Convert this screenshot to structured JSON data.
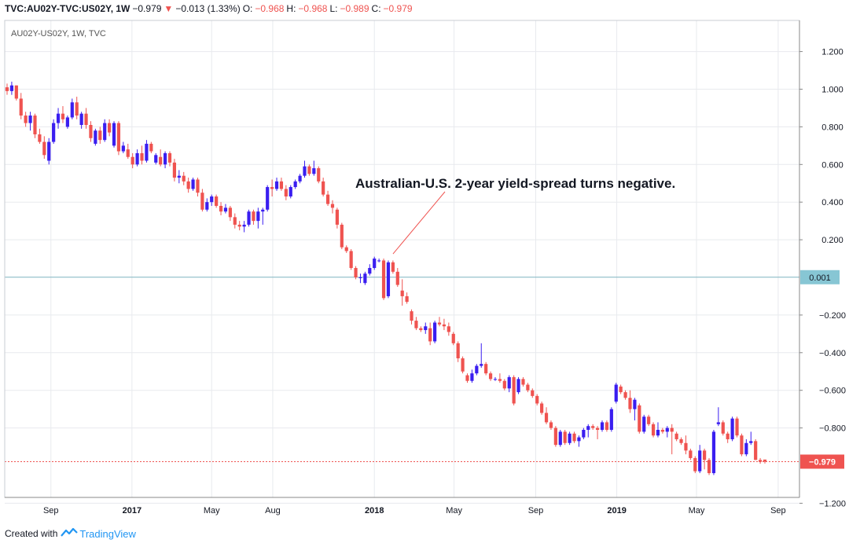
{
  "header": {
    "symbol": "TVC:AU02Y-TVC:US02Y, 1W",
    "last": "−0.979",
    "change_icon": "triangle-down-icon",
    "change": "−0.013 (1.33%)",
    "o_label": "O:",
    "o_value": "−0.968",
    "h_label": "H:",
    "h_value": "−0.968",
    "l_label": "L:",
    "l_value": "−0.989",
    "c_label": "C:",
    "c_value": "−0.979"
  },
  "footer": {
    "created_with": "Created with",
    "brand": "TradingView",
    "brand_icon": "tradingview-logo-icon"
  },
  "colors": {
    "up": "#3a1ef0",
    "down": "#ef5350",
    "zero_line": "#7fb4c0",
    "zero_badge": "#87c6d4",
    "last_badge": "#ef5350",
    "grid": "#e8eaee"
  },
  "chart_data": {
    "type": "candlestick",
    "title": "AU02Y-US02Y, 1W, TVC",
    "y_ticks": [
      "1.200",
      "1.000",
      "0.800",
      "0.600",
      "0.400",
      "0.200",
      "−0.200",
      "−0.400",
      "−0.600",
      "−0.800",
      "−1.200"
    ],
    "x_ticks": [
      {
        "label": "Sep",
        "date": "2016-09-01",
        "bold": false
      },
      {
        "label": "2017",
        "date": "2017-01-01",
        "bold": true
      },
      {
        "label": "May",
        "date": "2017-05-01",
        "bold": false
      },
      {
        "label": "Aug",
        "date": "2017-08-01",
        "bold": false
      },
      {
        "label": "2018",
        "date": "2018-01-01",
        "bold": true
      },
      {
        "label": "May",
        "date": "2018-05-01",
        "bold": false
      },
      {
        "label": "Sep",
        "date": "2018-09-01",
        "bold": false
      },
      {
        "label": "2019",
        "date": "2019-01-01",
        "bold": true
      },
      {
        "label": "May",
        "date": "2019-05-01",
        "bold": false
      },
      {
        "label": "Sep",
        "date": "2019-09-01",
        "bold": false
      }
    ],
    "ylim": [
      -1.2,
      1.2
    ],
    "grid": true,
    "zero_line": {
      "value": 0.001,
      "label": "0.001"
    },
    "last_price": {
      "value": -0.979,
      "label": "−0.979"
    },
    "annotation": {
      "text": "Australian-U.S. 2-year yield-spread turns negative.",
      "target_date": "2018-01-22",
      "target_value": 0.1
    },
    "candles": [
      [
        "2016-06-27",
        1.01,
        1.03,
        0.97,
        0.99
      ],
      [
        "2016-07-04",
        0.99,
        1.04,
        0.97,
        1.02
      ],
      [
        "2016-07-11",
        1.02,
        1.02,
        0.94,
        0.95
      ],
      [
        "2016-07-18",
        0.95,
        0.98,
        0.84,
        0.86
      ],
      [
        "2016-07-25",
        0.86,
        0.88,
        0.8,
        0.82
      ],
      [
        "2016-08-01",
        0.82,
        0.88,
        0.78,
        0.86
      ],
      [
        "2016-08-08",
        0.86,
        0.87,
        0.74,
        0.76
      ],
      [
        "2016-08-15",
        0.76,
        0.79,
        0.71,
        0.72
      ],
      [
        "2016-08-22",
        0.72,
        0.75,
        0.63,
        0.65
      ],
      [
        "2016-08-29",
        0.62,
        0.74,
        0.6,
        0.72
      ],
      [
        "2016-09-05",
        0.72,
        0.84,
        0.71,
        0.82
      ],
      [
        "2016-09-12",
        0.82,
        0.9,
        0.79,
        0.87
      ],
      [
        "2016-09-19",
        0.87,
        0.91,
        0.82,
        0.84
      ],
      [
        "2016-09-26",
        0.8,
        0.86,
        0.79,
        0.85
      ],
      [
        "2016-10-03",
        0.85,
        0.95,
        0.84,
        0.93
      ],
      [
        "2016-10-10",
        0.93,
        0.96,
        0.84,
        0.86
      ],
      [
        "2016-10-17",
        0.81,
        0.88,
        0.79,
        0.87
      ],
      [
        "2016-10-24",
        0.87,
        0.9,
        0.79,
        0.81
      ],
      [
        "2016-10-31",
        0.81,
        0.83,
        0.72,
        0.74
      ],
      [
        "2016-11-07",
        0.71,
        0.79,
        0.7,
        0.78
      ],
      [
        "2016-11-14",
        0.78,
        0.8,
        0.71,
        0.73
      ],
      [
        "2016-11-21",
        0.73,
        0.84,
        0.72,
        0.82
      ],
      [
        "2016-11-28",
        0.82,
        0.84,
        0.75,
        0.77
      ],
      [
        "2016-12-05",
        0.7,
        0.83,
        0.69,
        0.82
      ],
      [
        "2016-12-12",
        0.82,
        0.83,
        0.65,
        0.67
      ],
      [
        "2016-12-19",
        0.67,
        0.72,
        0.66,
        0.7
      ],
      [
        "2016-12-26",
        0.68,
        0.71,
        0.63,
        0.64
      ],
      [
        "2017-01-02",
        0.64,
        0.66,
        0.58,
        0.6
      ],
      [
        "2017-01-09",
        0.6,
        0.68,
        0.59,
        0.66
      ],
      [
        "2017-01-16",
        0.66,
        0.7,
        0.6,
        0.62
      ],
      [
        "2017-01-23",
        0.62,
        0.73,
        0.61,
        0.71
      ],
      [
        "2017-01-30",
        0.71,
        0.72,
        0.66,
        0.67
      ],
      [
        "2017-02-06",
        0.61,
        0.66,
        0.6,
        0.65
      ],
      [
        "2017-02-13",
        0.64,
        0.68,
        0.59,
        0.6
      ],
      [
        "2017-02-20",
        0.6,
        0.67,
        0.58,
        0.66
      ],
      [
        "2017-02-27",
        0.66,
        0.67,
        0.59,
        0.61
      ],
      [
        "2017-03-06",
        0.61,
        0.63,
        0.51,
        0.53
      ],
      [
        "2017-03-13",
        0.53,
        0.57,
        0.5,
        0.54
      ],
      [
        "2017-03-20",
        0.54,
        0.56,
        0.49,
        0.51
      ],
      [
        "2017-03-27",
        0.51,
        0.53,
        0.45,
        0.47
      ],
      [
        "2017-04-03",
        0.47,
        0.53,
        0.46,
        0.52
      ],
      [
        "2017-04-10",
        0.52,
        0.53,
        0.43,
        0.45
      ],
      [
        "2017-04-17",
        0.45,
        0.47,
        0.35,
        0.36
      ],
      [
        "2017-04-24",
        0.36,
        0.42,
        0.35,
        0.4
      ],
      [
        "2017-05-01",
        0.4,
        0.44,
        0.38,
        0.43
      ],
      [
        "2017-05-08",
        0.43,
        0.44,
        0.37,
        0.38
      ],
      [
        "2017-05-15",
        0.38,
        0.4,
        0.33,
        0.35
      ],
      [
        "2017-05-22",
        0.35,
        0.39,
        0.34,
        0.37
      ],
      [
        "2017-05-29",
        0.37,
        0.38,
        0.3,
        0.32
      ],
      [
        "2017-06-05",
        0.32,
        0.34,
        0.26,
        0.28
      ],
      [
        "2017-06-12",
        0.28,
        0.3,
        0.25,
        0.27
      ],
      [
        "2017-06-19",
        0.27,
        0.3,
        0.24,
        0.28
      ],
      [
        "2017-06-26",
        0.28,
        0.36,
        0.27,
        0.35
      ],
      [
        "2017-07-03",
        0.35,
        0.36,
        0.28,
        0.3
      ],
      [
        "2017-07-10",
        0.3,
        0.37,
        0.26,
        0.35
      ],
      [
        "2017-07-17",
        0.35,
        0.37,
        0.28,
        0.36
      ],
      [
        "2017-07-24",
        0.36,
        0.49,
        0.35,
        0.48
      ],
      [
        "2017-07-31",
        0.48,
        0.52,
        0.43,
        0.47
      ],
      [
        "2017-08-07",
        0.47,
        0.53,
        0.46,
        0.51
      ],
      [
        "2017-08-14",
        0.51,
        0.53,
        0.46,
        0.47
      ],
      [
        "2017-08-21",
        0.47,
        0.49,
        0.41,
        0.43
      ],
      [
        "2017-08-28",
        0.43,
        0.49,
        0.42,
        0.48
      ],
      [
        "2017-09-04",
        0.48,
        0.52,
        0.47,
        0.51
      ],
      [
        "2017-09-11",
        0.51,
        0.55,
        0.5,
        0.54
      ],
      [
        "2017-09-18",
        0.54,
        0.62,
        0.53,
        0.59
      ],
      [
        "2017-09-25",
        0.59,
        0.6,
        0.54,
        0.55
      ],
      [
        "2017-10-02",
        0.55,
        0.62,
        0.54,
        0.58
      ],
      [
        "2017-10-09",
        0.58,
        0.59,
        0.5,
        0.51
      ],
      [
        "2017-10-16",
        0.51,
        0.53,
        0.43,
        0.44
      ],
      [
        "2017-10-23",
        0.44,
        0.46,
        0.38,
        0.39
      ],
      [
        "2017-10-30",
        0.39,
        0.41,
        0.34,
        0.37
      ],
      [
        "2017-11-06",
        0.36,
        0.37,
        0.26,
        0.28
      ],
      [
        "2017-11-13",
        0.28,
        0.29,
        0.15,
        0.16
      ],
      [
        "2017-11-20",
        0.16,
        0.17,
        0.13,
        0.14
      ],
      [
        "2017-11-27",
        0.14,
        0.15,
        0.04,
        0.05
      ],
      [
        "2017-12-04",
        0.05,
        0.06,
        -0.01,
        0.0
      ],
      [
        "2017-12-11",
        0.0,
        0.02,
        -0.03,
        0.0
      ],
      [
        "2017-12-18",
        -0.03,
        0.03,
        -0.04,
        0.02
      ],
      [
        "2017-12-25",
        0.02,
        0.07,
        0.01,
        0.05
      ],
      [
        "2018-01-01",
        0.05,
        0.11,
        0.04,
        0.1
      ],
      [
        "2018-01-08",
        0.09,
        0.1,
        0.08,
        0.09
      ],
      [
        "2018-01-15",
        0.09,
        0.1,
        -0.12,
        -0.11
      ],
      [
        "2018-01-22",
        -0.1,
        0.09,
        -0.11,
        0.08
      ],
      [
        "2018-01-29",
        0.08,
        0.09,
        0.02,
        0.03
      ],
      [
        "2018-02-05",
        0.03,
        0.05,
        -0.05,
        -0.04
      ],
      [
        "2018-02-12",
        -0.07,
        -0.01,
        -0.15,
        -0.1
      ],
      [
        "2018-02-19",
        -0.1,
        -0.08,
        -0.14,
        -0.13
      ],
      [
        "2018-02-26",
        -0.18,
        -0.17,
        -0.25,
        -0.23
      ],
      [
        "2018-03-05",
        -0.23,
        -0.21,
        -0.28,
        -0.27
      ],
      [
        "2018-03-12",
        -0.27,
        -0.26,
        -0.29,
        -0.28
      ],
      [
        "2018-03-19",
        -0.28,
        -0.24,
        -0.3,
        -0.26
      ],
      [
        "2018-03-26",
        -0.27,
        -0.24,
        -0.36,
        -0.34
      ],
      [
        "2018-04-02",
        -0.34,
        -0.23,
        -0.35,
        -0.24
      ],
      [
        "2018-04-09",
        -0.24,
        -0.21,
        -0.26,
        -0.25
      ],
      [
        "2018-04-16",
        -0.25,
        -0.22,
        -0.28,
        -0.26
      ],
      [
        "2018-04-23",
        -0.26,
        -0.24,
        -0.31,
        -0.29
      ],
      [
        "2018-04-30",
        -0.3,
        -0.29,
        -0.36,
        -0.35
      ],
      [
        "2018-05-07",
        -0.35,
        -0.34,
        -0.45,
        -0.43
      ],
      [
        "2018-05-14",
        -0.43,
        -0.42,
        -0.51,
        -0.5
      ],
      [
        "2018-05-21",
        -0.52,
        -0.51,
        -0.56,
        -0.55
      ],
      [
        "2018-05-28",
        -0.55,
        -0.49,
        -0.56,
        -0.51
      ],
      [
        "2018-06-04",
        -0.51,
        -0.46,
        -0.52,
        -0.47
      ],
      [
        "2018-06-11",
        -0.47,
        -0.35,
        -0.48,
        -0.46
      ],
      [
        "2018-06-18",
        -0.46,
        -0.45,
        -0.52,
        -0.51
      ],
      [
        "2018-06-25",
        -0.51,
        -0.5,
        -0.55,
        -0.54
      ],
      [
        "2018-07-02",
        -0.54,
        -0.53,
        -0.55,
        -0.54
      ],
      [
        "2018-07-09",
        -0.54,
        -0.51,
        -0.56,
        -0.55
      ],
      [
        "2018-07-16",
        -0.55,
        -0.54,
        -0.6,
        -0.59
      ],
      [
        "2018-07-23",
        -0.59,
        -0.52,
        -0.61,
        -0.53
      ],
      [
        "2018-07-30",
        -0.53,
        -0.52,
        -0.68,
        -0.67
      ],
      [
        "2018-08-06",
        -0.61,
        -0.53,
        -0.62,
        -0.54
      ],
      [
        "2018-08-13",
        -0.54,
        -0.53,
        -0.58,
        -0.57
      ],
      [
        "2018-08-20",
        -0.57,
        -0.56,
        -0.61,
        -0.6
      ],
      [
        "2018-08-27",
        -0.6,
        -0.59,
        -0.64,
        -0.63
      ],
      [
        "2018-09-03",
        -0.63,
        -0.62,
        -0.68,
        -0.67
      ],
      [
        "2018-09-10",
        -0.67,
        -0.66,
        -0.73,
        -0.72
      ],
      [
        "2018-09-17",
        -0.72,
        -0.69,
        -0.78,
        -0.77
      ],
      [
        "2018-09-24",
        -0.77,
        -0.76,
        -0.81,
        -0.8
      ],
      [
        "2018-10-01",
        -0.8,
        -0.79,
        -0.9,
        -0.89
      ],
      [
        "2018-10-08",
        -0.89,
        -0.81,
        -0.9,
        -0.82
      ],
      [
        "2018-10-15",
        -0.82,
        -0.81,
        -0.89,
        -0.88
      ],
      [
        "2018-10-22",
        -0.88,
        -0.82,
        -0.89,
        -0.83
      ],
      [
        "2018-10-29",
        -0.83,
        -0.82,
        -0.88,
        -0.87
      ],
      [
        "2018-11-05",
        -0.87,
        -0.84,
        -0.9,
        -0.85
      ],
      [
        "2018-11-12",
        -0.85,
        -0.8,
        -0.86,
        -0.81
      ],
      [
        "2018-11-19",
        -0.81,
        -0.78,
        -0.85,
        -0.79
      ],
      [
        "2018-11-26",
        -0.79,
        -0.78,
        -0.81,
        -0.8
      ],
      [
        "2018-12-03",
        -0.8,
        -0.79,
        -0.86,
        -0.81
      ],
      [
        "2018-12-10",
        -0.81,
        -0.76,
        -0.82,
        -0.77
      ],
      [
        "2018-12-17",
        -0.77,
        -0.76,
        -0.82,
        -0.81
      ],
      [
        "2018-12-24",
        -0.81,
        -0.69,
        -0.82,
        -0.7
      ],
      [
        "2018-12-31",
        -0.66,
        -0.56,
        -0.67,
        -0.57
      ],
      [
        "2019-01-07",
        -0.58,
        -0.57,
        -0.62,
        -0.61
      ],
      [
        "2019-01-14",
        -0.61,
        -0.6,
        -0.65,
        -0.64
      ],
      [
        "2019-01-21",
        -0.64,
        -0.6,
        -0.72,
        -0.7
      ],
      [
        "2019-01-28",
        -0.7,
        -0.64,
        -0.76,
        -0.65
      ],
      [
        "2019-02-04",
        -0.68,
        -0.67,
        -0.83,
        -0.82
      ],
      [
        "2019-02-11",
        -0.82,
        -0.73,
        -0.83,
        -0.74
      ],
      [
        "2019-02-18",
        -0.74,
        -0.73,
        -0.79,
        -0.78
      ],
      [
        "2019-02-25",
        -0.78,
        -0.77,
        -0.85,
        -0.84
      ],
      [
        "2019-03-04",
        -0.84,
        -0.77,
        -0.85,
        -0.81
      ],
      [
        "2019-03-11",
        -0.81,
        -0.8,
        -0.83,
        -0.82
      ],
      [
        "2019-03-18",
        -0.82,
        -0.79,
        -0.85,
        -0.8
      ],
      [
        "2019-03-25",
        -0.8,
        -0.78,
        -0.94,
        -0.82
      ],
      [
        "2019-04-01",
        -0.83,
        -0.82,
        -0.87,
        -0.86
      ],
      [
        "2019-04-08",
        -0.86,
        -0.85,
        -0.89,
        -0.88
      ],
      [
        "2019-04-15",
        -0.88,
        -0.84,
        -0.94,
        -0.92
      ],
      [
        "2019-04-22",
        -0.92,
        -0.91,
        -0.97,
        -0.96
      ],
      [
        "2019-04-29",
        -0.96,
        -0.95,
        -1.04,
        -1.03
      ],
      [
        "2019-05-06",
        -1.03,
        -0.89,
        -1.04,
        -0.92
      ],
      [
        "2019-05-13",
        -0.92,
        -0.91,
        -1.02,
        -0.97
      ],
      [
        "2019-05-20",
        -0.97,
        -0.96,
        -1.05,
        -1.04
      ],
      [
        "2019-05-27",
        -1.04,
        -0.81,
        -1.05,
        -0.82
      ],
      [
        "2019-06-03",
        -0.78,
        -0.69,
        -0.79,
        -0.77
      ],
      [
        "2019-06-10",
        -0.77,
        -0.76,
        -0.84,
        -0.83
      ],
      [
        "2019-06-17",
        -0.83,
        -0.82,
        -0.88,
        -0.86
      ],
      [
        "2019-06-24",
        -0.86,
        -0.74,
        -0.87,
        -0.75
      ],
      [
        "2019-07-01",
        -0.75,
        -0.74,
        -0.85,
        -0.84
      ],
      [
        "2019-07-08",
        -0.84,
        -0.83,
        -0.95,
        -0.94
      ],
      [
        "2019-07-15",
        -0.94,
        -0.86,
        -0.95,
        -0.88
      ],
      [
        "2019-07-22",
        -0.88,
        -0.82,
        -0.89,
        -0.87
      ],
      [
        "2019-07-29",
        -0.87,
        -0.86,
        -0.97,
        -0.97
      ],
      [
        "2019-08-05",
        -0.97,
        -0.96,
        -0.99,
        -0.98
      ],
      [
        "2019-08-12",
        -0.968,
        -0.968,
        -0.989,
        -0.979
      ]
    ]
  }
}
